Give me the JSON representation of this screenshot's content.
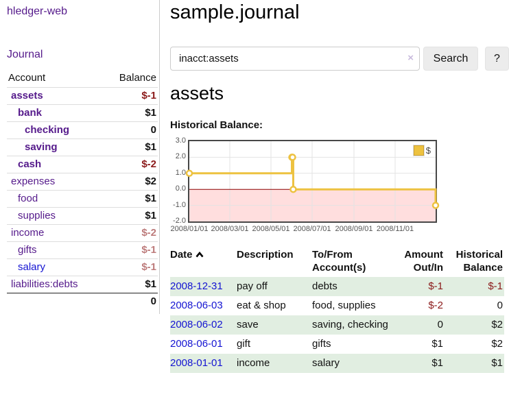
{
  "app": {
    "title": "hledger-web"
  },
  "sidebar": {
    "nav_journal": "Journal",
    "header": {
      "account": "Account",
      "balance": "Balance"
    },
    "accounts": [
      {
        "name": "assets",
        "indent": 0,
        "bold": true,
        "balance": "$-1",
        "amount_class": "neg",
        "link_class": "purple"
      },
      {
        "name": "bank",
        "indent": 1,
        "bold": true,
        "balance": "$1",
        "amount_class": "",
        "link_class": "purple"
      },
      {
        "name": "checking",
        "indent": 2,
        "bold": true,
        "balance": "0",
        "amount_class": "",
        "link_class": "purple"
      },
      {
        "name": "saving",
        "indent": 2,
        "bold": true,
        "balance": "$1",
        "amount_class": "",
        "link_class": "purple"
      },
      {
        "name": "cash",
        "indent": 1,
        "bold": true,
        "balance": "$-2",
        "amount_class": "neg",
        "link_class": "purple"
      },
      {
        "name": "expenses",
        "indent": 0,
        "bold": false,
        "balance": "$2",
        "amount_class": "",
        "link_class": "purple"
      },
      {
        "name": "food",
        "indent": 1,
        "bold": false,
        "balance": "$1",
        "amount_class": "",
        "link_class": "purple"
      },
      {
        "name": "supplies",
        "indent": 1,
        "bold": false,
        "balance": "$1",
        "amount_class": "",
        "link_class": "purple"
      },
      {
        "name": "income",
        "indent": 0,
        "bold": false,
        "balance": "$-2",
        "amount_class": "neg-muted",
        "link_class": "purple"
      },
      {
        "name": "gifts",
        "indent": 1,
        "bold": false,
        "balance": "$-1",
        "amount_class": "neg-muted",
        "link_class": "purple"
      },
      {
        "name": "salary",
        "indent": 1,
        "bold": false,
        "balance": "$-1",
        "amount_class": "neg-muted",
        "link_class": "bluelink"
      },
      {
        "name": "liabilities:debts",
        "indent": 0,
        "bold": false,
        "balance": "$1",
        "amount_class": "",
        "link_class": "purple"
      }
    ],
    "total": "0"
  },
  "main": {
    "title": "sample.journal",
    "search": {
      "value": "inacct:assets",
      "clear": "×",
      "search_button": "Search",
      "help_button": "?"
    },
    "account_title": "assets",
    "chart_title": "Historical Balance:"
  },
  "chart_data": {
    "type": "line",
    "title": "Historical Balance:",
    "step": true,
    "x_range": [
      0,
      365
    ],
    "y_range": [
      -2,
      3
    ],
    "x_unit": "days since 2008-01-01",
    "series": [
      {
        "name": "$",
        "color": "#edc240",
        "points": [
          [
            0,
            1
          ],
          [
            152,
            2
          ],
          [
            153,
            2
          ],
          [
            154,
            0
          ],
          [
            365,
            -1
          ]
        ],
        "point_dates": [
          "2008-01-01",
          "2008-06-01",
          "2008-06-02",
          "2008-06-03",
          "2008-12-31"
        ]
      }
    ],
    "x_ticks": [
      {
        "x": 0,
        "label": "2008/01/01"
      },
      {
        "x": 60,
        "label": "2008/03/01"
      },
      {
        "x": 121,
        "label": "2008/05/01"
      },
      {
        "x": 182,
        "label": "2008/07/01"
      },
      {
        "x": 244,
        "label": "2008/09/01"
      },
      {
        "x": 305,
        "label": "2008/11/01"
      }
    ],
    "y_ticks": [
      {
        "v": 3,
        "label": "3.0"
      },
      {
        "v": 2,
        "label": "2.0"
      },
      {
        "v": 1,
        "label": "1.0"
      },
      {
        "v": 0,
        "label": "0.0"
      },
      {
        "v": -1,
        "label": "-1.0"
      },
      {
        "v": -2,
        "label": "-2.0"
      }
    ],
    "legend": {
      "label": "$",
      "position": "top-right"
    },
    "grid": true,
    "grid_color": "#e3e3e3",
    "zero_line_color": "#8b0000",
    "negative_fill": "rgba(255,0,0,0.13)"
  },
  "register": {
    "headers": {
      "date": "Date",
      "description": "Description",
      "accounts": "To/From Account(s)",
      "amount": "Amount Out/In",
      "balance": "Historical Balance"
    },
    "sort": "date-ascending",
    "rows": [
      {
        "date": "2008-12-31",
        "description": "pay off",
        "accounts": "debts",
        "amount": "$-1",
        "amount_negative": true,
        "balance": "$-1",
        "balance_negative": true
      },
      {
        "date": "2008-06-03",
        "description": "eat & shop",
        "accounts": "food, supplies",
        "amount": "$-2",
        "amount_negative": true,
        "balance": "0",
        "balance_negative": false
      },
      {
        "date": "2008-06-02",
        "description": "save",
        "accounts": "saving, checking",
        "amount": "0",
        "amount_negative": false,
        "balance": "$2",
        "balance_negative": false
      },
      {
        "date": "2008-06-01",
        "description": "gift",
        "accounts": "gifts",
        "amount": "$1",
        "amount_negative": false,
        "balance": "$2",
        "balance_negative": false
      },
      {
        "date": "2008-01-01",
        "description": "income",
        "accounts": "salary",
        "amount": "$1",
        "amount_negative": false,
        "balance": "$1",
        "balance_negative": false
      }
    ]
  },
  "colors": {
    "link_purple": "#551a8b",
    "link_blue": "#1414d2",
    "negative": "#8b1a1a",
    "negative_muted": "#bd7b7b",
    "row_stripe_green": "#e1eee1",
    "series_gold": "#edc240",
    "divider": "#cccccc"
  }
}
